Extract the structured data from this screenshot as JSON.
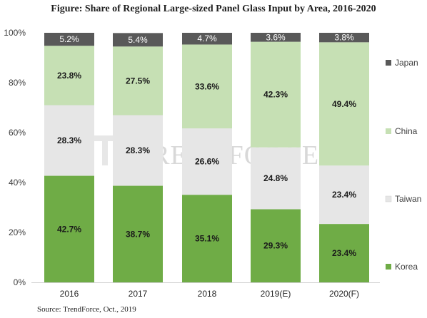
{
  "title": "Figure: Share of Regional Large-sized Panel Glass Input by Area, 2016-2020",
  "source": "Source: TrendForce, Oct., 2019",
  "watermark": "TRENDFORCE",
  "chart_data": {
    "type": "bar",
    "stacked": true,
    "categories": [
      "2016",
      "2017",
      "2018",
      "2019(E)",
      "2020(F)"
    ],
    "yticks": [
      "0%",
      "20%",
      "40%",
      "60%",
      "80%",
      "100%"
    ],
    "ylim": [
      0,
      100
    ],
    "legend_position": "right",
    "series": [
      {
        "name": "Korea",
        "color": "#6fac46",
        "values": [
          42.7,
          38.7,
          35.1,
          29.3,
          23.4
        ],
        "labels": [
          "42.7%",
          "38.7%",
          "35.1%",
          "29.3%",
          "23.4%"
        ]
      },
      {
        "name": "Taiwan",
        "color": "#e6e6e6",
        "values": [
          28.3,
          28.3,
          26.6,
          24.8,
          23.4
        ],
        "labels": [
          "28.3%",
          "28.3%",
          "26.6%",
          "24.8%",
          "23.4%"
        ]
      },
      {
        "name": "China",
        "color": "#c6e0b4",
        "values": [
          23.8,
          27.5,
          33.6,
          42.3,
          49.4
        ],
        "labels": [
          "23.8%",
          "27.5%",
          "33.6%",
          "42.3%",
          "49.4%"
        ]
      },
      {
        "name": "Japan",
        "color": "#595959",
        "values": [
          5.2,
          5.4,
          4.7,
          3.6,
          3.8
        ],
        "labels": [
          "5.2%",
          "5.4%",
          "4.7%",
          "3.6%",
          "3.8%"
        ]
      }
    ]
  }
}
